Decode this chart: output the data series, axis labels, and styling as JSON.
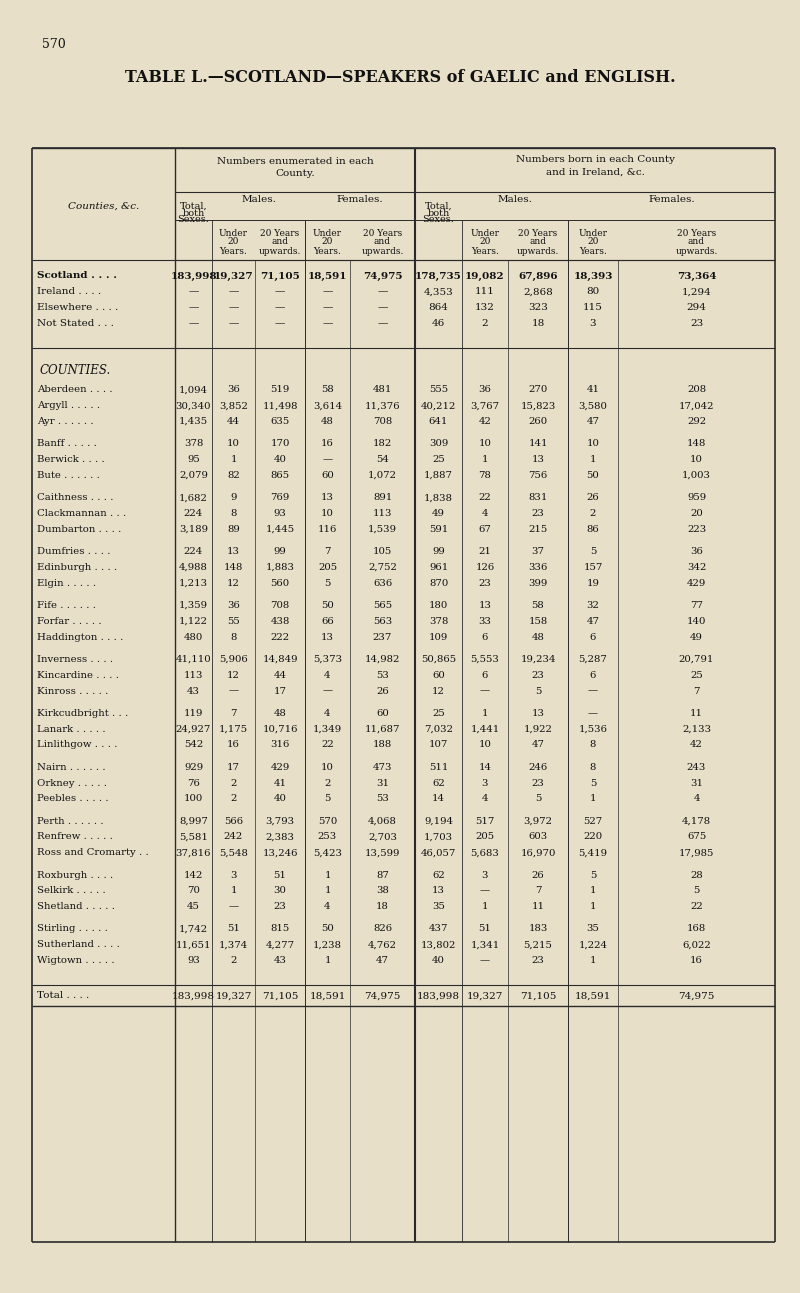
{
  "title": "TABLE L.—SCOTLAND—SPEAKERS of GAELIC and ENGLISH.",
  "page_number": "570",
  "bg_color": "#e8dfc8",
  "header1_left": "Numbers enumerated in each\nCounty.",
  "header1_right": "Numbers born in each County\nand in Ireland, &c.",
  "summary_rows": [
    [
      "Scotland . . . .",
      "183,998",
      "19,327",
      "71,105",
      "18,591",
      "74,975",
      "178,735",
      "19,082",
      "67,896",
      "18,393",
      "73,364"
    ],
    [
      "Ireland . . . .",
      "—",
      "—",
      "—",
      "—",
      "—",
      "4,353",
      "111",
      "2,868",
      "80",
      "1,294"
    ],
    [
      "Elsewhere . . . .",
      "—",
      "—",
      "—",
      "—",
      "—",
      "864",
      "132",
      "323",
      "115",
      "294"
    ],
    [
      "Not Stated . . .",
      "—",
      "—",
      "—",
      "—",
      "—",
      "46",
      "2",
      "18",
      "3",
      "23"
    ]
  ],
  "county_label": "COUNTIES.",
  "county_rows": [
    [
      "Aberdeen . . . .",
      "1,094",
      "36",
      "519",
      "58",
      "481",
      "555",
      "36",
      "270",
      "41",
      "208"
    ],
    [
      "Argyll . . . . .",
      "30,340",
      "3,852",
      "11,498",
      "3,614",
      "11,376",
      "40,212",
      "3,767",
      "15,823",
      "3,580",
      "17,042"
    ],
    [
      "Ayr . . . . . .",
      "1,435",
      "44",
      "635",
      "48",
      "708",
      "641",
      "42",
      "260",
      "47",
      "292"
    ],
    [
      "Banff . . . . .",
      "378",
      "10",
      "170",
      "16",
      "182",
      "309",
      "10",
      "141",
      "10",
      "148"
    ],
    [
      "Berwick . . . .",
      "95",
      "1",
      "40",
      "—",
      "54",
      "25",
      "1",
      "13",
      "1",
      "10"
    ],
    [
      "Bute . . . . . .",
      "2,079",
      "82",
      "865",
      "60",
      "1,072",
      "1,887",
      "78",
      "756",
      "50",
      "1,003"
    ],
    [
      "Caithness . . . .",
      "1,682",
      "9",
      "769",
      "13",
      "891",
      "1,838",
      "22",
      "831",
      "26",
      "959"
    ],
    [
      "Clackmannan . . .",
      "224",
      "8",
      "93",
      "10",
      "113",
      "49",
      "4",
      "23",
      "2",
      "20"
    ],
    [
      "Dumbarton . . . .",
      "3,189",
      "89",
      "1,445",
      "116",
      "1,539",
      "591",
      "67",
      "215",
      "86",
      "223"
    ],
    [
      "Dumfries . . . .",
      "224",
      "13",
      "99",
      "7",
      "105",
      "99",
      "21",
      "37",
      "5",
      "36"
    ],
    [
      "Edinburgh . . . .",
      "4,988",
      "148",
      "1,883",
      "205",
      "2,752",
      "961",
      "126",
      "336",
      "157",
      "342"
    ],
    [
      "Elgin . . . . .",
      "1,213",
      "12",
      "560",
      "5",
      "636",
      "870",
      "23",
      "399",
      "19",
      "429"
    ],
    [
      "Fife . . . . . .",
      "1,359",
      "36",
      "708",
      "50",
      "565",
      "180",
      "13",
      "58",
      "32",
      "77"
    ],
    [
      "Forfar . . . . .",
      "1,122",
      "55",
      "438",
      "66",
      "563",
      "378",
      "33",
      "158",
      "47",
      "140"
    ],
    [
      "Haddington . . . .",
      "480",
      "8",
      "222",
      "13",
      "237",
      "109",
      "6",
      "48",
      "6",
      "49"
    ],
    [
      "Inverness . . . .",
      "41,110",
      "5,906",
      "14,849",
      "5,373",
      "14,982",
      "50,865",
      "5,553",
      "19,234",
      "5,287",
      "20,791"
    ],
    [
      "Kincardine . . . .",
      "113",
      "12",
      "44",
      "4",
      "53",
      "60",
      "6",
      "23",
      "6",
      "25"
    ],
    [
      "Kinross . . . . .",
      "43",
      "—",
      "17",
      "—",
      "26",
      "12",
      "—",
      "5",
      "—",
      "7"
    ],
    [
      "Kirkcudbright . . .",
      "119",
      "7",
      "48",
      "4",
      "60",
      "25",
      "1",
      "13",
      "—",
      "11"
    ],
    [
      "Lanark . . . . .",
      "24,927",
      "1,175",
      "10,716",
      "1,349",
      "11,687",
      "7,032",
      "1,441",
      "1,922",
      "1,536",
      "2,133"
    ],
    [
      "Linlithgow . . . .",
      "542",
      "16",
      "316",
      "22",
      "188",
      "107",
      "10",
      "47",
      "8",
      "42"
    ],
    [
      "Nairn . . . . . .",
      "929",
      "17",
      "429",
      "10",
      "473",
      "511",
      "14",
      "246",
      "8",
      "243"
    ],
    [
      "Orkney . . . . .",
      "76",
      "2",
      "41",
      "2",
      "31",
      "62",
      "3",
      "23",
      "5",
      "31"
    ],
    [
      "Peebles . . . . .",
      "100",
      "2",
      "40",
      "5",
      "53",
      "14",
      "4",
      "5",
      "1",
      "4"
    ],
    [
      "Perth . . . . . .",
      "8,997",
      "566",
      "3,793",
      "570",
      "4,068",
      "9,194",
      "517",
      "3,972",
      "527",
      "4,178"
    ],
    [
      "Renfrew . . . . .",
      "5,581",
      "242",
      "2,383",
      "253",
      "2,703",
      "1,703",
      "205",
      "603",
      "220",
      "675"
    ],
    [
      "Ross and Cromarty . .",
      "37,816",
      "5,548",
      "13,246",
      "5,423",
      "13,599",
      "46,057",
      "5,683",
      "16,970",
      "5,419",
      "17,985"
    ],
    [
      "Roxburgh . . . .",
      "142",
      "3",
      "51",
      "1",
      "87",
      "62",
      "3",
      "26",
      "5",
      "28"
    ],
    [
      "Selkirk . . . . .",
      "70",
      "1",
      "30",
      "1",
      "38",
      "13",
      "—",
      "7",
      "1",
      "5"
    ],
    [
      "Shetland . . . . .",
      "45",
      "—",
      "23",
      "4",
      "18",
      "35",
      "1",
      "11",
      "1",
      "22"
    ],
    [
      "Stirling . . . . .",
      "1,742",
      "51",
      "815",
      "50",
      "826",
      "437",
      "51",
      "183",
      "35",
      "168"
    ],
    [
      "Sutherland . . . .",
      "11,651",
      "1,374",
      "4,277",
      "1,238",
      "4,762",
      "13,802",
      "1,341",
      "5,215",
      "1,224",
      "6,022"
    ],
    [
      "Wigtown . . . . .",
      "93",
      "2",
      "43",
      "1",
      "47",
      "40",
      "—",
      "23",
      "1",
      "16"
    ]
  ],
  "total_row": [
    "Total . . . .",
    "183,998",
    "19,327",
    "71,105",
    "18,591",
    "74,975",
    "183,998",
    "19,327",
    "71,105",
    "18,591",
    "74,975"
  ]
}
